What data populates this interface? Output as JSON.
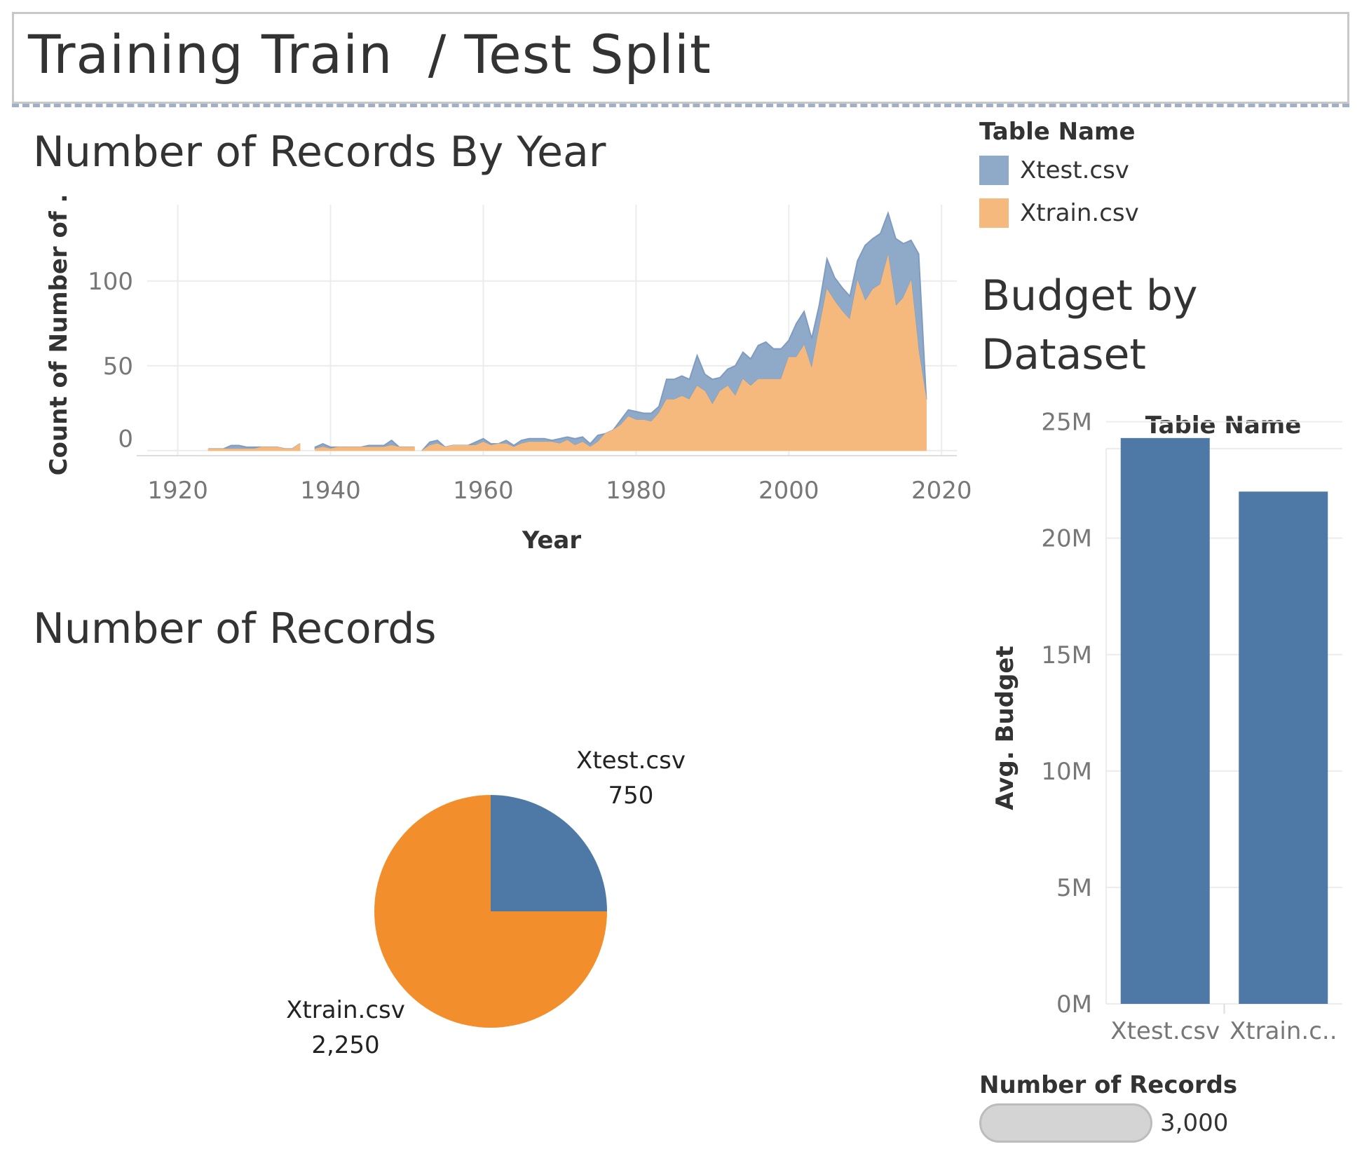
{
  "dashboard_title": "Training Train  / Test Split",
  "colors": {
    "xtest": "#4e79a7",
    "xtrain": "#f28e2b",
    "xtest_area": "#8fa9c8",
    "xtrain_area": "#f5b97e",
    "grid": "#ececec"
  },
  "legend": {
    "title": "Table Name",
    "items": [
      {
        "label": "Xtest.csv",
        "color": "#8fa9c8"
      },
      {
        "label": "Xtrain.csv",
        "color": "#f5b97e"
      }
    ]
  },
  "size_legend": {
    "title": "Number of Records",
    "value": "3,000"
  },
  "chart_data": [
    {
      "type": "area",
      "title": "Number of Records By Year",
      "xlabel": "Year",
      "ylabel": "Count of Number of ..",
      "xlim": [
        1916,
        2022
      ],
      "ylim": [
        -3,
        145
      ],
      "xticks": [
        1920,
        1940,
        1960,
        1980,
        2000,
        2020
      ],
      "yticks": [
        0,
        50,
        100
      ],
      "ytick_labels": [
        "0",
        "50",
        "100"
      ],
      "stacked": true,
      "grid": true,
      "series": [
        {
          "name": "Xtrain.csv",
          "segments": [
            {
              "x": [
                1921
              ],
              "values": [
                0
              ]
            },
            {
              "x": [
                1924,
                1925,
                1926,
                1927,
                1928,
                1929,
                1930,
                1931,
                1932,
                1933,
                1934,
                1935,
                1936
              ],
              "values": [
                1,
                1,
                1,
                1,
                1,
                1,
                1,
                2,
                2,
                2,
                1,
                1,
                4
              ]
            },
            {
              "x": [
                1938,
                1939,
                1940,
                1941,
                1942,
                1943,
                1944,
                1945,
                1946,
                1947,
                1948,
                1949,
                1950,
                1951
              ],
              "values": [
                1,
                2,
                1,
                2,
                2,
                2,
                2,
                2,
                2,
                2,
                3,
                2,
                2,
                2
              ]
            },
            {
              "x": [
                1952,
                1953,
                1954,
                1955,
                1956,
                1957,
                1958,
                1959,
                1960,
                1961,
                1962,
                1963,
                1964,
                1965,
                1966,
                1967,
                1968,
                1969,
                1970,
                1971,
                1972,
                1973,
                1974,
                1975,
                1976,
                1977,
                1978,
                1979,
                1980,
                1981,
                1982,
                1983,
                1984,
                1985,
                1986,
                1987,
                1988,
                1989,
                1990,
                1991,
                1992,
                1993,
                1994,
                1995,
                1996,
                1997,
                1998,
                1999,
                2000,
                2001,
                2002,
                2003,
                2004,
                2005,
                2006,
                2007,
                2008,
                2009,
                2010,
                2011,
                2012,
                2013,
                2014,
                2015,
                2016,
                2017,
                2018
              ],
              "values": [
                0,
                3,
                4,
                2,
                3,
                3,
                3,
                3,
                5,
                3,
                4,
                4,
                2,
                4,
                5,
                5,
                5,
                5,
                4,
                6,
                3,
                5,
                2,
                5,
                10,
                12,
                15,
                20,
                18,
                18,
                17,
                22,
                30,
                30,
                32,
                30,
                38,
                35,
                27,
                35,
                38,
                32,
                42,
                38,
                42,
                42,
                42,
                42,
                55,
                55,
                62,
                48,
                72,
                95,
                88,
                82,
                77,
                100,
                88,
                95,
                98,
                115,
                85,
                90,
                100,
                58,
                30
              ]
            }
          ]
        },
        {
          "name": "Xtest.csv",
          "segments": [
            {
              "x": [
                1921
              ],
              "values": [
                0
              ]
            },
            {
              "x": [
                1924,
                1925,
                1926,
                1927,
                1928,
                1929,
                1930,
                1931,
                1932,
                1933,
                1934,
                1935,
                1936
              ],
              "values": [
                0,
                0,
                0,
                2,
                2,
                1,
                1,
                0,
                0,
                0,
                0,
                0,
                0
              ]
            },
            {
              "x": [
                1938,
                1939,
                1940,
                1941,
                1942,
                1943,
                1944,
                1945,
                1946,
                1947,
                1948,
                1949,
                1950,
                1951
              ],
              "values": [
                1,
                2,
                1,
                0,
                0,
                0,
                0,
                1,
                1,
                1,
                3,
                0,
                0,
                0
              ]
            },
            {
              "x": [
                1952,
                1953,
                1954,
                1955,
                1956,
                1957,
                1958,
                1959,
                1960,
                1961,
                1962,
                1963,
                1964,
                1965,
                1966,
                1967,
                1968,
                1969,
                1970,
                1971,
                1972,
                1973,
                1974,
                1975,
                1976,
                1977,
                1978,
                1979,
                1980,
                1981,
                1982,
                1983,
                1984,
                1985,
                1986,
                1987,
                1988,
                1989,
                1990,
                1991,
                1992,
                1993,
                1994,
                1995,
                1996,
                1997,
                1998,
                1999,
                2000,
                2001,
                2002,
                2003,
                2004,
                2005,
                2006,
                2007,
                2008,
                2009,
                2010,
                2011,
                2012,
                2013,
                2014,
                2015,
                2016,
                2017,
                2018
              ],
              "values": [
                0,
                2,
                2,
                0,
                0,
                0,
                0,
                2,
                2,
                1,
                0,
                2,
                1,
                2,
                2,
                2,
                2,
                1,
                3,
                2,
                4,
                3,
                2,
                4,
                0,
                0,
                3,
                4,
                5,
                4,
                5,
                4,
                12,
                12,
                12,
                12,
                18,
                10,
                15,
                8,
                10,
                18,
                16,
                16,
                20,
                22,
                18,
                18,
                10,
                20,
                20,
                18,
                14,
                18,
                14,
                14,
                14,
                12,
                33,
                30,
                30,
                25,
                40,
                32,
                24,
                58,
                0
              ]
            }
          ]
        }
      ]
    },
    {
      "type": "pie",
      "title": "Number of Records",
      "slices": [
        {
          "label": "Xtest.csv",
          "value": 750,
          "value_label": "750",
          "color": "#4e79a7"
        },
        {
          "label": "Xtrain.csv",
          "value": 2250,
          "value_label": "2,250",
          "color": "#f28e2b"
        }
      ]
    },
    {
      "type": "bar",
      "title": "Budget by Dataset",
      "header": "Table Name",
      "ylabel": "Avg. Budget",
      "categories": [
        "Xtest.csv",
        "Xtrain.csv"
      ],
      "category_labels": [
        "Xtest.csv",
        "Xtrain.c.."
      ],
      "values": [
        24300000,
        22000000
      ],
      "ylim": [
        0,
        25500000
      ],
      "yticks": [
        0,
        5000000,
        10000000,
        15000000,
        20000000,
        25000000
      ],
      "ytick_labels": [
        "0M",
        "5M",
        "10M",
        "15M",
        "20M",
        "25M"
      ],
      "color": "#4e79a7",
      "grid": true
    }
  ]
}
